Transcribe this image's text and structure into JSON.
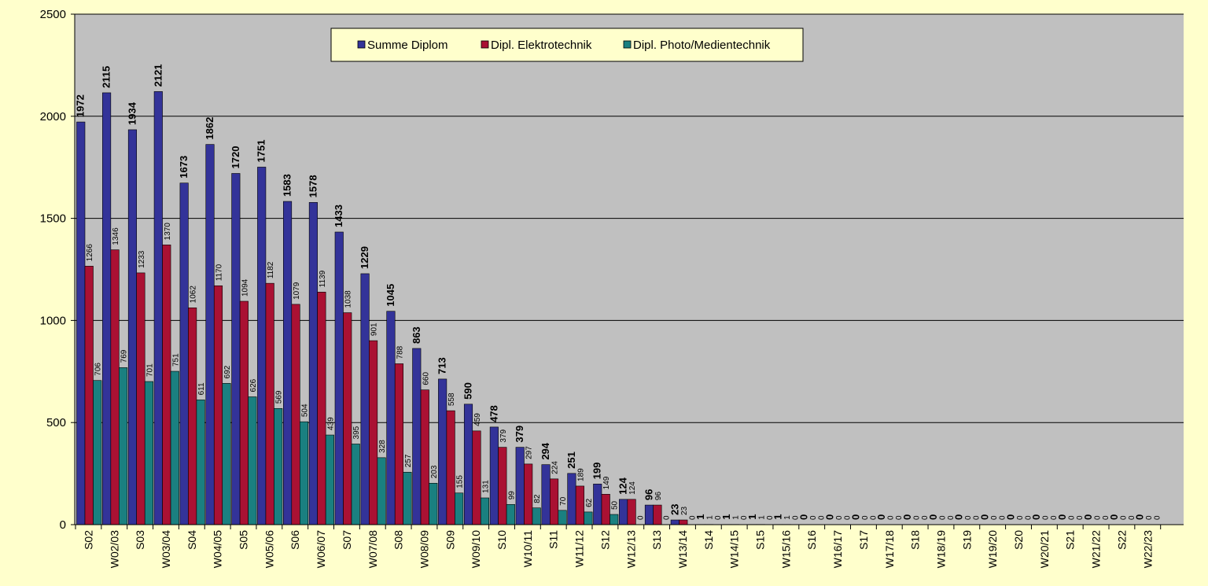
{
  "chart_data": {
    "type": "bar",
    "title": "",
    "xlabel": "",
    "ylabel": "",
    "ylim": [
      0,
      2500
    ],
    "yticks": [
      0,
      500,
      1000,
      1500,
      2000,
      2500
    ],
    "grid": true,
    "legend_position": "top-center",
    "categories": [
      "S02",
      "W02/03",
      "S03",
      "W03/04",
      "S04",
      "W04/05",
      "S05",
      "W05/06",
      "S06",
      "W06/07",
      "S07",
      "W07/08",
      "S08",
      "W08/09",
      "S09",
      "W09/10",
      "S10",
      "W10/11",
      "S11",
      "W11/12",
      "S12",
      "W12/13",
      "S13",
      "W13/14",
      "S14",
      "W14/15",
      "S15",
      "W15/16",
      "S16",
      "W16/17",
      "S17",
      "W17/18",
      "S18",
      "W18/19",
      "S19",
      "W19/20",
      "S20",
      "W20/21",
      "S21",
      "W21/22",
      "S22",
      "W22/23"
    ],
    "series": [
      {
        "name": "Summe Diplom",
        "color": "#333399",
        "values": [
          1972,
          2115,
          1934,
          2121,
          1673,
          1862,
          1720,
          1751,
          1583,
          1578,
          1433,
          1229,
          1045,
          863,
          713,
          590,
          478,
          379,
          294,
          251,
          199,
          124,
          96,
          23,
          1,
          1,
          1,
          1,
          0,
          0,
          0,
          0,
          0,
          0,
          0,
          0,
          0,
          0,
          0,
          0,
          0,
          0
        ]
      },
      {
        "name": "Dipl. Elektrotechnik",
        "color": "#aa1133",
        "values": [
          1266,
          1346,
          1233,
          1370,
          1062,
          1170,
          1094,
          1182,
          1079,
          1139,
          1038,
          901,
          788,
          660,
          558,
          459,
          379,
          297,
          224,
          189,
          149,
          124,
          96,
          23,
          1,
          1,
          1,
          1,
          0,
          0,
          0,
          0,
          0,
          0,
          0,
          0,
          0,
          0,
          0,
          0,
          0,
          0
        ]
      },
      {
        "name": "Dipl. Photo/Medientechnik",
        "color": "#1a8080",
        "values": [
          706,
          769,
          701,
          751,
          611,
          692,
          626,
          569,
          504,
          439,
          395,
          328,
          257,
          203,
          155,
          131,
          99,
          82,
          70,
          62,
          50,
          0,
          0,
          0,
          0,
          0,
          0,
          0,
          0,
          0,
          0,
          0,
          0,
          0,
          0,
          0,
          0,
          0,
          0,
          0,
          0,
          0
        ]
      }
    ]
  }
}
